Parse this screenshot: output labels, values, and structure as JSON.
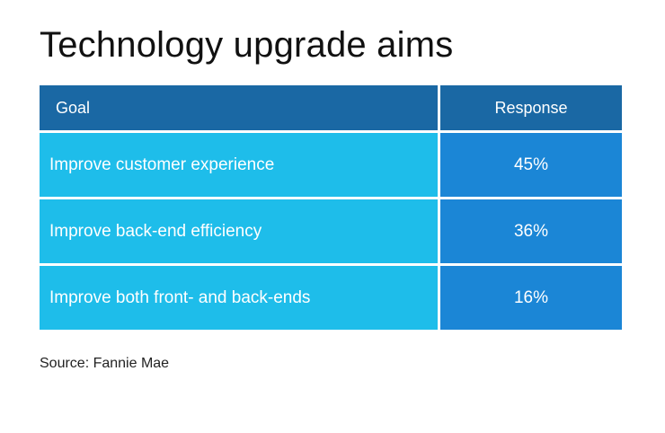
{
  "title": "Technology upgrade aims",
  "source": "Source: Fannie Mae",
  "colors": {
    "header_bg": "#1a68a4",
    "goal_bg": "#1ebdea",
    "response_bg": "#1b86d6",
    "text_light": "#ffffff"
  },
  "chart_data": {
    "type": "table",
    "title": "Technology upgrade aims",
    "columns": [
      "Goal",
      "Response"
    ],
    "rows": [
      {
        "goal": "Improve customer experience",
        "response": "45%"
      },
      {
        "goal": "Improve back-end efficiency",
        "response": "36%"
      },
      {
        "goal": "Improve both front- and back-ends",
        "response": "16%"
      }
    ],
    "values": [
      45,
      36,
      16
    ],
    "unit": "%"
  }
}
